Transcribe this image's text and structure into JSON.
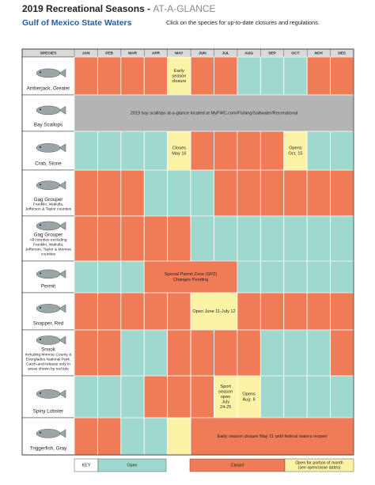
{
  "header": {
    "title": "2019 Recreational Seasons - ",
    "title_tag": "AT-A-GLANCE",
    "subtitle": "Gulf of Mexico State Waters",
    "instruction": "Click on the species for up-to-date closures and regulations."
  },
  "table": {
    "species_header": "SPECIES",
    "months": [
      "JAN",
      "FEB",
      "MAR",
      "APR",
      "MAY",
      "JUN",
      "JUL",
      "AUG",
      "SEP",
      "OCT",
      "NOV",
      "DEC"
    ],
    "rows": [
      {
        "name": "Amberjack, Greater",
        "details": [],
        "cells": [
          "#f07b57",
          "#f07b57",
          "#f07b57",
          "#f07b57",
          "#fdf3a6",
          "#f07b57",
          "#f07b57",
          "#9fd8cc",
          "#9fd8cc",
          "#9fd8cc",
          "#f07b57",
          "#f07b57"
        ],
        "labels": [
          {
            "text": [
              "Early",
              "season",
              "closure"
            ],
            "from": "MAY",
            "to": "MAY"
          }
        ]
      },
      {
        "name": "Bay Scallops",
        "details": [],
        "cells": [
          "#b4b4b4",
          "#b4b4b4",
          "#b4b4b4",
          "#b4b4b4",
          "#b4b4b4",
          "#b4b4b4",
          "#b4b4b4",
          "#b4b4b4",
          "#b4b4b4",
          "#b4b4b4",
          "#b4b4b4",
          "#b4b4b4"
        ],
        "labels": [
          {
            "text": [
              "2019 bay scallops at-a-glance located at MyFWC.com/Fishing/Saltwater/Recreational"
            ],
            "from": "JAN",
            "to": "DEC"
          }
        ]
      },
      {
        "name": "Crab, Stone",
        "details": [],
        "cells": [
          "#9fd8cc",
          "#9fd8cc",
          "#9fd8cc",
          "#9fd8cc",
          "#fdf3a6",
          "#f07b57",
          "#f07b57",
          "#f07b57",
          "#f07b57",
          "#fdf3a6",
          "#9fd8cc",
          "#9fd8cc"
        ],
        "labels": [
          {
            "text": [
              "Closes",
              "May 16"
            ],
            "from": "MAY",
            "to": "MAY"
          },
          {
            "text": [
              "Opens",
              "Oct. 15"
            ],
            "from": "OCT",
            "to": "OCT"
          }
        ]
      },
      {
        "name": "Gag Grouper",
        "details": [
          "Franklin, Wakulla,",
          "Jefferson & Taylor counties"
        ],
        "cells": [
          "#f07b57",
          "#f07b57",
          "#f07b57",
          "#9fd8cc",
          "#9fd8cc",
          "#9fd8cc",
          "#f07b57",
          "#f07b57",
          "#f07b57",
          "#f07b57",
          "#f07b57",
          "#f07b57"
        ],
        "labels": []
      },
      {
        "name": "Gag Grouper",
        "details": [
          "All counties excluding",
          "Franklin, Wakulla,",
          "Jefferson, Taylor & Monroe",
          "counties"
        ],
        "cells": [
          "#f07b57",
          "#f07b57",
          "#f07b57",
          "#f07b57",
          "#f07b57",
          "#9fd8cc",
          "#9fd8cc",
          "#9fd8cc",
          "#9fd8cc",
          "#9fd8cc",
          "#9fd8cc",
          "#9fd8cc"
        ],
        "labels": []
      },
      {
        "name": "Permit",
        "details": [],
        "cells": [
          "#9fd8cc",
          "#9fd8cc",
          "#9fd8cc",
          "#f07b57",
          "#f07b57",
          "#f07b57",
          "#f07b57",
          "#9fd8cc",
          "#9fd8cc",
          "#9fd8cc",
          "#9fd8cc",
          "#9fd8cc"
        ],
        "labels": [
          {
            "text": [
              "Special Permit Zone (SPZ)",
              "Changes Pending"
            ],
            "from": "APR",
            "to": "JUL"
          }
        ]
      },
      {
        "name": "Snapper, Red",
        "details": [],
        "cells": [
          "#f07b57",
          "#f07b57",
          "#f07b57",
          "#f07b57",
          "#f07b57",
          "#fdf3a6",
          "#fdf3a6",
          "#f07b57",
          "#f07b57",
          "#f07b57",
          "#f07b57",
          "#f07b57"
        ],
        "labels": [
          {
            "text": [
              "Open June 11-July 12"
            ],
            "from": "JUN",
            "to": "JUL"
          }
        ]
      },
      {
        "name": "Snook",
        "details": [
          "Including Monroe County &",
          "Everglades National Park.",
          "Catch-and-release only in",
          "areas shown by red tide"
        ],
        "cells": [
          "#f07b57",
          "#f07b57",
          "#9fd8cc",
          "#9fd8cc",
          "#f07b57",
          "#f07b57",
          "#f07b57",
          "#f07b57",
          "#9fd8cc",
          "#9fd8cc",
          "#9fd8cc",
          "#f07b57"
        ],
        "labels": []
      },
      {
        "name": "Spiny Lobster",
        "details": [],
        "cells": [
          "#9fd8cc",
          "#9fd8cc",
          "#9fd8cc",
          "#f07b57",
          "#f07b57",
          "#f07b57",
          "#fdf3a6",
          "#fdf3a6",
          "#9fd8cc",
          "#9fd8cc",
          "#9fd8cc",
          "#9fd8cc"
        ],
        "labels": [
          {
            "text": [
              "Sport",
              "season",
              "open",
              "July",
              "24-25"
            ],
            "from": "JUL",
            "to": "JUL"
          },
          {
            "text": [
              "Opens",
              "Aug. 6"
            ],
            "from": "AUG",
            "to": "AUG"
          }
        ]
      },
      {
        "name": "Triggerfish, Gray",
        "details": [],
        "cells": [
          "#f07b57",
          "#f07b57",
          "#9fd8cc",
          "#9fd8cc",
          "#fdf3a6",
          "#f07b57",
          "#f07b57",
          "#f07b57",
          "#f07b57",
          "#f07b57",
          "#f07b57",
          "#f07b57"
        ],
        "labels": [
          {
            "text": [
              "Early season closure May 11 until federal waters reopen"
            ],
            "from": "JUN",
            "to": "DEC"
          }
        ]
      }
    ]
  },
  "key": {
    "title": "KEY",
    "items": [
      {
        "label": [
          "Open"
        ],
        "color": "#9fd8cc"
      },
      {
        "label": [
          "Closed"
        ],
        "color": "#f07b57"
      },
      {
        "label": [
          "Open for portion of month",
          "(see open/close dates)"
        ],
        "color": "#fdf3a6"
      }
    ]
  }
}
